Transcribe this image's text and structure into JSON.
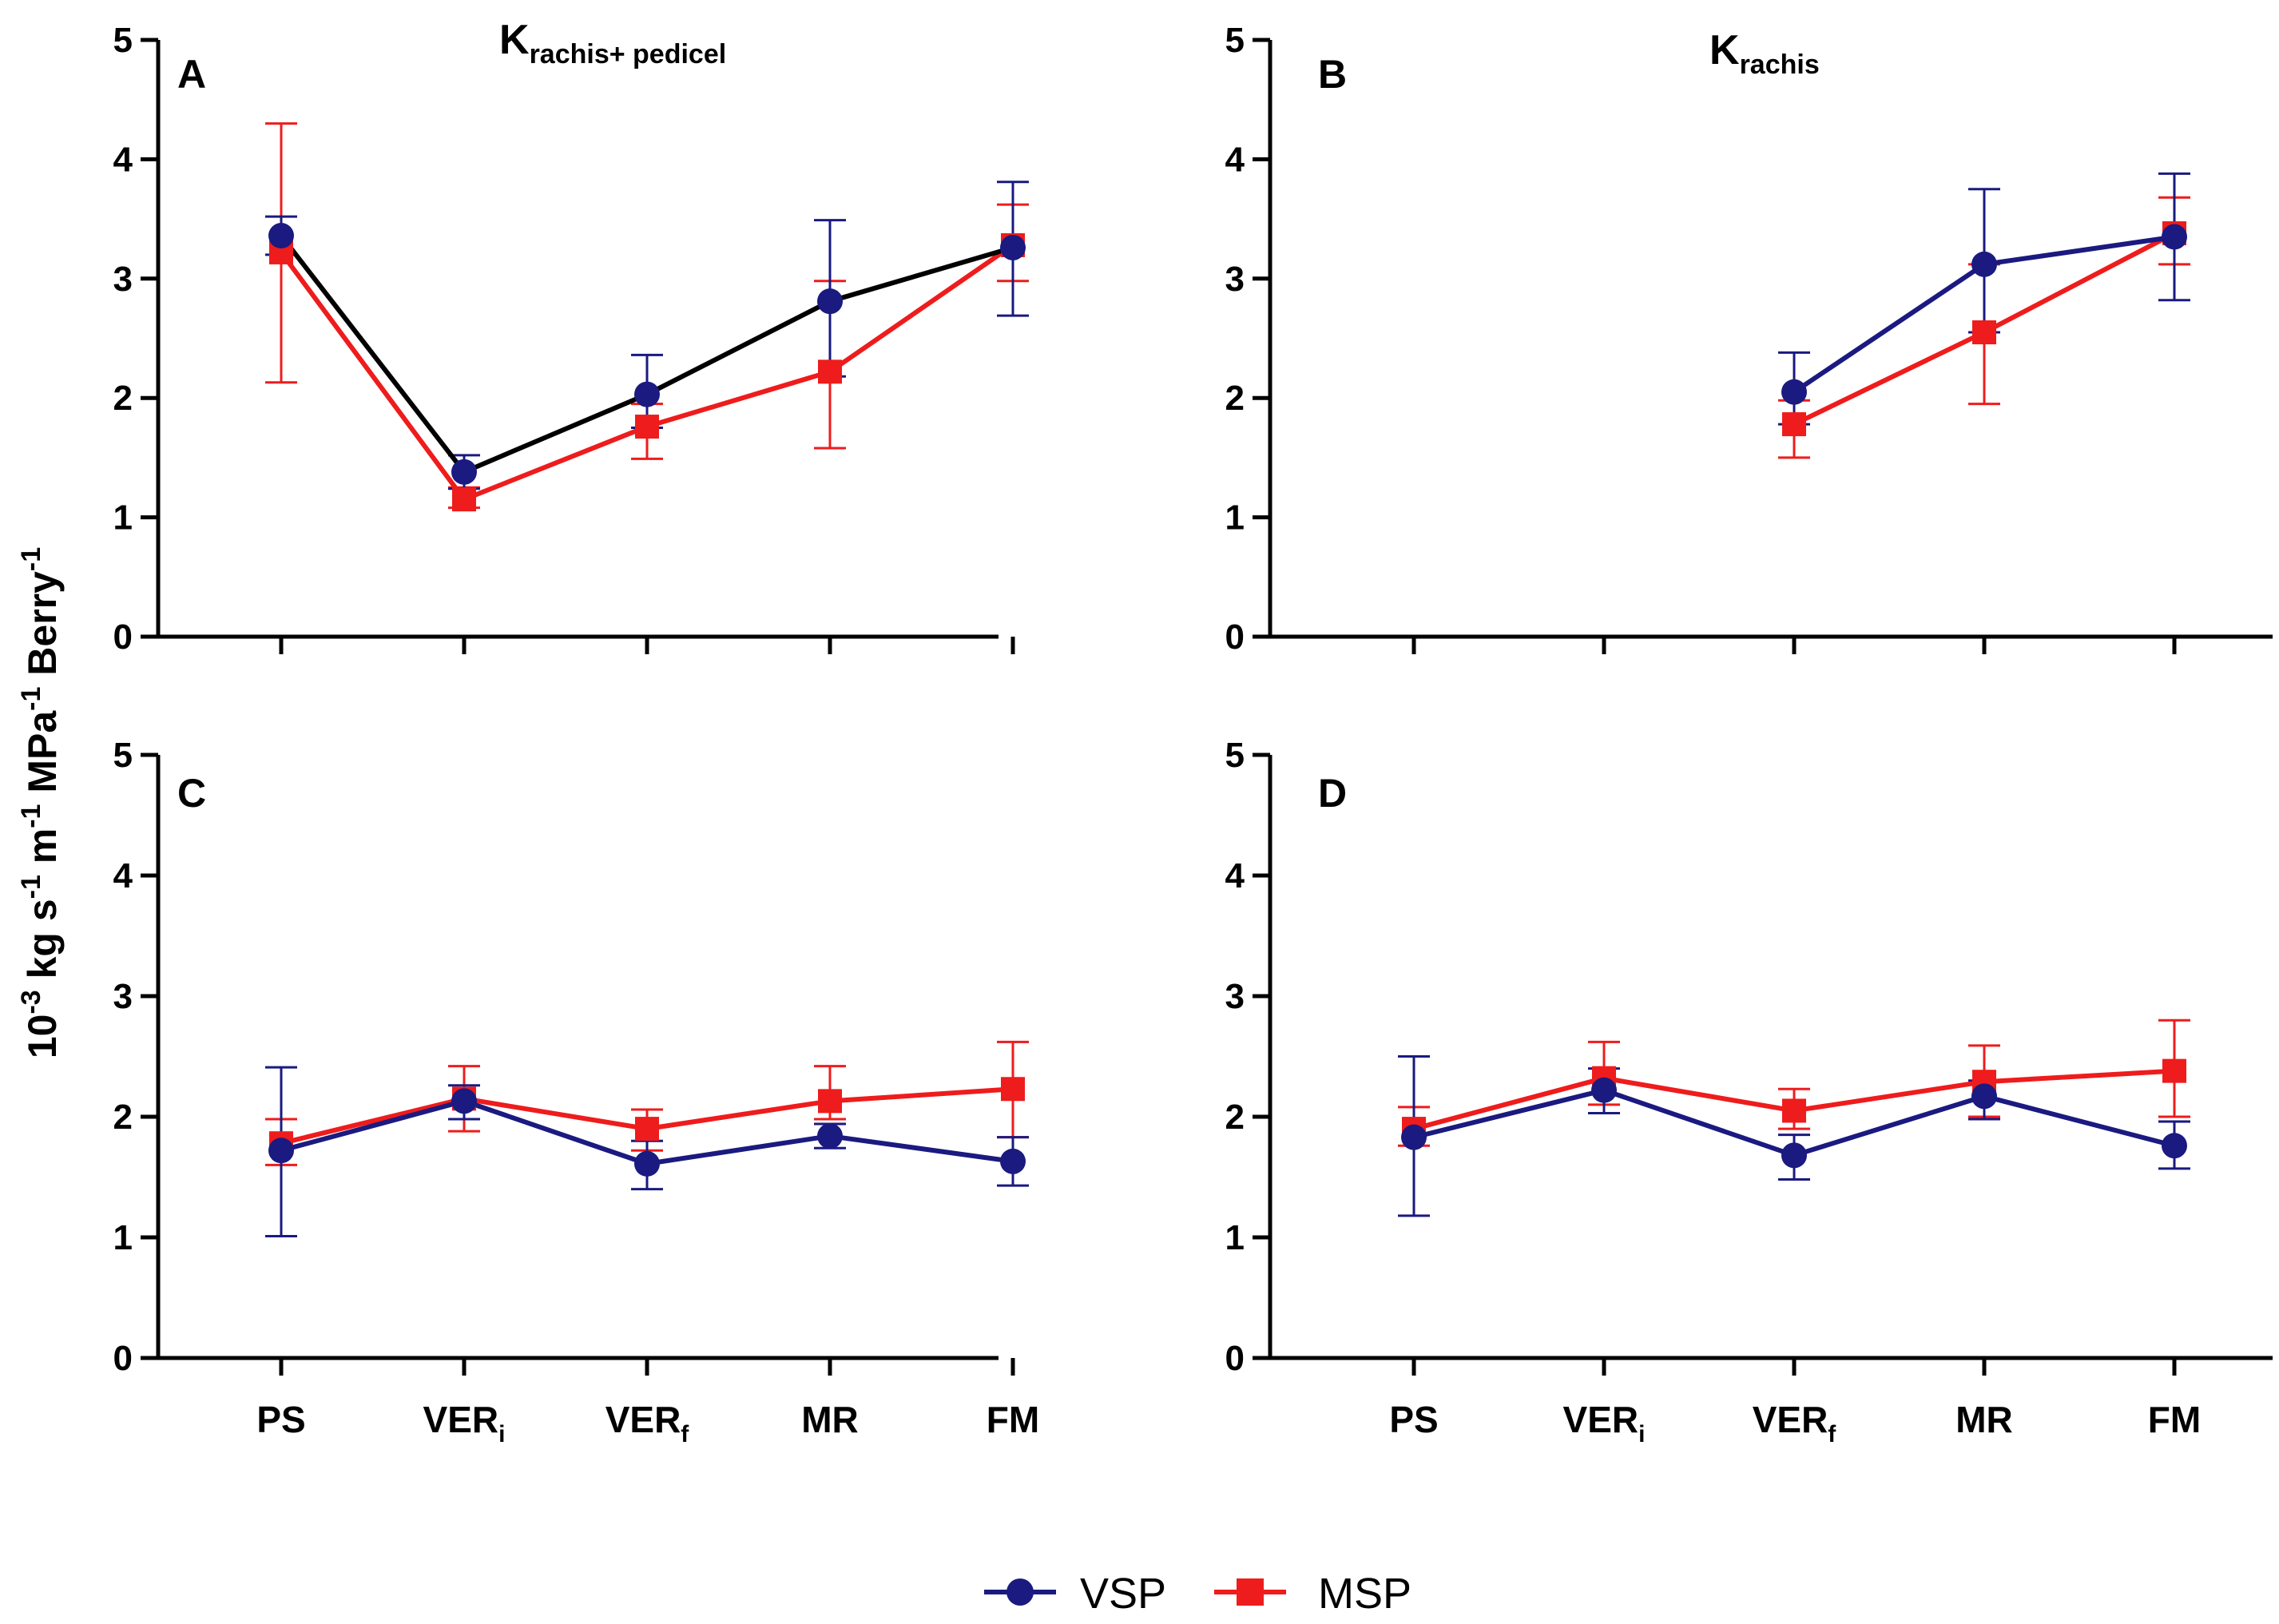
{
  "chart_data": [
    {
      "panel": "A",
      "type": "line",
      "title": "K",
      "title_subscript": "rachis+ pedicel",
      "ylabel_prefix": "10",
      "ylabel_exp1": "-3",
      "ylabel_mid1": " kg s",
      "ylabel_exp2": "-1",
      "ylabel_mid2": " m",
      "ylabel_exp3": "-1",
      "ylabel_mid3": " MPa",
      "ylabel_exp4": "-1",
      "ylabel_mid4": " Berry",
      "ylabel_exp5": "-1",
      "ylim": [
        0,
        5
      ],
      "yticks": [
        "0",
        "1",
        "2",
        "3",
        "4",
        "5"
      ],
      "categories": [
        "PS",
        "VERi",
        "VERf",
        "MR",
        "FM"
      ],
      "category_labels": [
        {
          "base": "PS",
          "sub": ""
        },
        {
          "base": "VER",
          "sub": "i"
        },
        {
          "base": "VER",
          "sub": "f"
        },
        {
          "base": "MR",
          "sub": ""
        },
        {
          "base": "FM",
          "sub": ""
        }
      ],
      "show_category_labels": false,
      "series": [
        {
          "name": "VSP",
          "color": "#1a1a80",
          "line_color": "#000000",
          "marker": "circle",
          "values": [
            3.36,
            1.38,
            2.03,
            2.81,
            3.26
          ],
          "err_upper": [
            3.52,
            1.52,
            2.36,
            3.49,
            3.81
          ],
          "err_lower": [
            3.2,
            1.24,
            1.75,
            2.18,
            2.69
          ]
        },
        {
          "name": "MSP",
          "color": "#ee1c1c",
          "line_color": "#ee1c1c",
          "marker": "square",
          "values": [
            3.22,
            1.15,
            1.76,
            2.22,
            3.28
          ],
          "err_upper": [
            4.3,
            1.25,
            1.95,
            2.98,
            3.62
          ],
          "err_lower": [
            2.13,
            1.08,
            1.49,
            1.58,
            2.98
          ]
        }
      ]
    },
    {
      "panel": "B",
      "type": "line",
      "title": "K",
      "title_subscript": "rachis",
      "ylim": [
        0,
        5
      ],
      "yticks": [
        "0",
        "1",
        "2",
        "3",
        "4",
        "5"
      ],
      "categories": [
        "PS",
        "VERi",
        "VERf",
        "MR",
        "FM"
      ],
      "category_labels": [
        {
          "base": "PS",
          "sub": ""
        },
        {
          "base": "VER",
          "sub": "i"
        },
        {
          "base": "VER",
          "sub": "f"
        },
        {
          "base": "MR",
          "sub": ""
        },
        {
          "base": "FM",
          "sub": ""
        }
      ],
      "show_category_labels": false,
      "series": [
        {
          "name": "VSP",
          "color": "#1a1a80",
          "line_color": "#1a1a80",
          "marker": "circle",
          "values": [
            null,
            null,
            2.05,
            3.12,
            3.35
          ],
          "err_upper": [
            null,
            null,
            2.38,
            3.75,
            3.88
          ],
          "err_lower": [
            null,
            null,
            1.78,
            2.55,
            2.82
          ]
        },
        {
          "name": "MSP",
          "color": "#ee1c1c",
          "line_color": "#ee1c1c",
          "marker": "square",
          "values": [
            null,
            null,
            1.78,
            2.55,
            3.38
          ],
          "err_upper": [
            null,
            null,
            1.98,
            3.12,
            3.68
          ],
          "err_lower": [
            null,
            null,
            1.5,
            1.95,
            3.12
          ]
        }
      ]
    },
    {
      "panel": "C",
      "type": "line",
      "ylim": [
        0,
        5
      ],
      "yticks": [
        "0",
        "1",
        "2",
        "3",
        "4",
        "5"
      ],
      "categories": [
        "PS",
        "VERi",
        "VERf",
        "MR",
        "FM"
      ],
      "category_labels": [
        {
          "base": "PS",
          "sub": ""
        },
        {
          "base": "VER",
          "sub": "i"
        },
        {
          "base": "VER",
          "sub": "f"
        },
        {
          "base": "MR",
          "sub": ""
        },
        {
          "base": "FM",
          "sub": ""
        }
      ],
      "show_category_labels": true,
      "series": [
        {
          "name": "VSP",
          "color": "#1a1a80",
          "line_color": "#1a1a80",
          "marker": "circle",
          "values": [
            1.72,
            2.13,
            1.61,
            1.84,
            1.63
          ],
          "err_upper": [
            2.41,
            2.26,
            1.8,
            1.94,
            1.83
          ],
          "err_lower": [
            1.01,
            1.98,
            1.4,
            1.74,
            1.43
          ]
        },
        {
          "name": "MSP",
          "color": "#ee1c1c",
          "line_color": "#ee1c1c",
          "marker": "square",
          "values": [
            1.78,
            2.15,
            1.9,
            2.13,
            2.23
          ],
          "err_upper": [
            1.98,
            2.42,
            2.06,
            2.42,
            2.62
          ],
          "err_lower": [
            1.6,
            1.88,
            1.72,
            1.98,
            1.83
          ]
        }
      ]
    },
    {
      "panel": "D",
      "type": "line",
      "ylim": [
        0,
        5
      ],
      "yticks": [
        "0",
        "1",
        "2",
        "3",
        "4",
        "5"
      ],
      "categories": [
        "PS",
        "VERi",
        "VERf",
        "MR",
        "FM"
      ],
      "category_labels": [
        {
          "base": "PS",
          "sub": ""
        },
        {
          "base": "VER",
          "sub": "i"
        },
        {
          "base": "VER",
          "sub": "f"
        },
        {
          "base": "MR",
          "sub": ""
        },
        {
          "base": "FM",
          "sub": ""
        }
      ],
      "show_category_labels": true,
      "series": [
        {
          "name": "VSP",
          "color": "#1a1a80",
          "line_color": "#1a1a80",
          "marker": "circle",
          "values": [
            1.83,
            2.22,
            1.68,
            2.17,
            1.76
          ],
          "err_upper": [
            2.5,
            2.4,
            1.85,
            2.3,
            1.96
          ],
          "err_lower": [
            1.18,
            2.03,
            1.48,
            1.98,
            1.57
          ]
        },
        {
          "name": "MSP",
          "color": "#ee1c1c",
          "line_color": "#ee1c1c",
          "marker": "square",
          "values": [
            1.9,
            2.32,
            2.05,
            2.29,
            2.38
          ],
          "err_upper": [
            2.08,
            2.62,
            2.23,
            2.59,
            2.8
          ],
          "err_lower": [
            1.76,
            2.1,
            1.9,
            2.0,
            2.0
          ]
        }
      ]
    }
  ],
  "legend": {
    "position": "bottom-center",
    "items": [
      {
        "label": "VSP",
        "color": "#1a1a80",
        "marker": "circle"
      },
      {
        "label": "MSP",
        "color": "#ee1c1c",
        "marker": "square"
      }
    ]
  }
}
